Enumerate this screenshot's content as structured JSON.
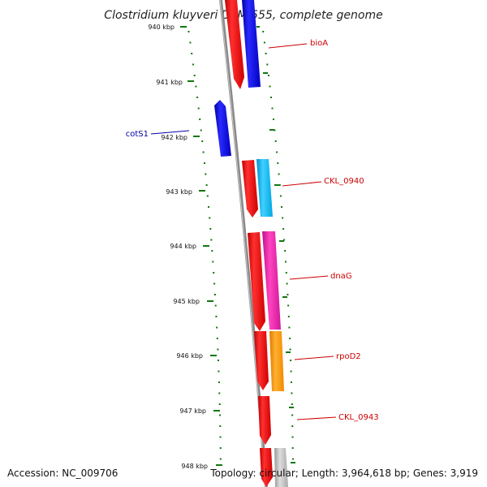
{
  "title": "Clostridium kluyveri DSM 555, complete genome",
  "ticks": [
    "940 kbp",
    "941 kbp",
    "942 kbp",
    "943 kbp",
    "944 kbp",
    "945 kbp",
    "946 kbp",
    "947 kbp",
    "948 kbp"
  ],
  "gene_labels": {
    "bioA": "bioA",
    "cotS1": "cotS1",
    "ckl0940": "CKL_0940",
    "dnaG": "dnaG",
    "rpoD2": "rpoD2",
    "ckl0943": "CKL_0943"
  },
  "footer": {
    "accession": "Accession: NC_009706",
    "topology": "Topology: circular; Length: 3,964,618 bp; Genes: 3,919"
  },
  "colors": {
    "forward_gene": "#ff0000",
    "reverse_gene": "#0000ee",
    "bioA": "#0000dd",
    "ckl0940": "#00b8f0",
    "dnaG": "#ee22aa",
    "rpoD2": "#ff9900",
    "unknown": "#bbbbbb",
    "backbone": "#888888",
    "tick": "#117711",
    "label_line_red": "#cc0000",
    "label_line_blue": "#0000aa"
  }
}
